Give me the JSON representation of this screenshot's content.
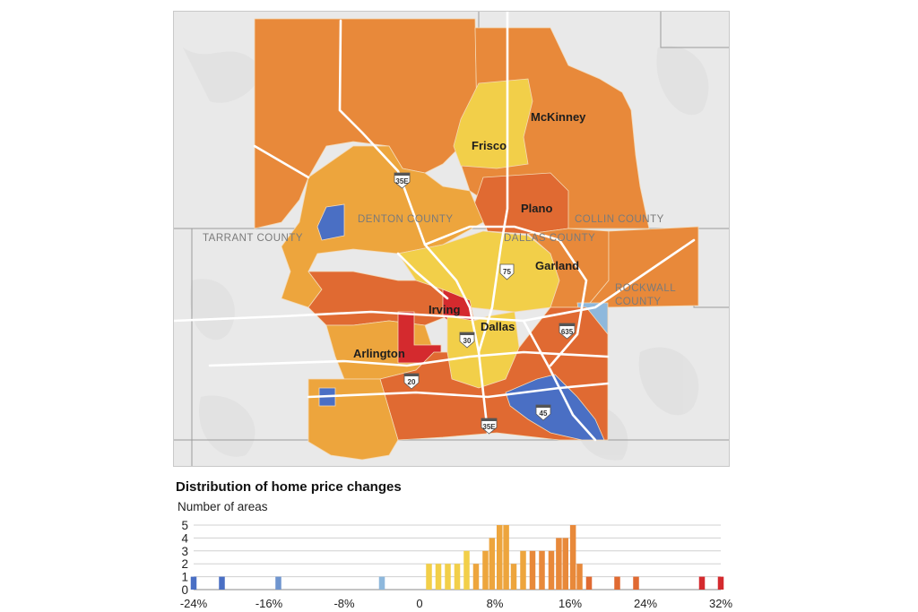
{
  "map": {
    "cities": [
      {
        "name": "McKinney"
      },
      {
        "name": "Frisco"
      },
      {
        "name": "Plano"
      },
      {
        "name": "Garland"
      },
      {
        "name": "Irving"
      },
      {
        "name": "Dallas"
      },
      {
        "name": "Arlington"
      }
    ],
    "counties": [
      {
        "name": "DENTON COUNTY"
      },
      {
        "name": "COLLIN COUNTY"
      },
      {
        "name": "TARRANT COUNTY"
      },
      {
        "name": "DALLAS COUNTY"
      },
      {
        "name": "ROCKWALL",
        "name2": "COUNTY"
      }
    ],
    "highways": [
      "35E",
      "75",
      "635",
      "30",
      "20",
      "45",
      "35E"
    ],
    "colors": {
      "strong_decline": "#4a6fc4",
      "mild_decline": "#8eb8dc",
      "low_gain": "#f2cf49",
      "mid_gain": "#eda53d",
      "high_gain": "#e8893a",
      "very_high_gain": "#e06a32",
      "extreme_gain": "#d42a2e"
    }
  },
  "chart_data": {
    "type": "bar",
    "title": "Distribution of home price changes",
    "ylabel": "Number of areas",
    "xlim": [
      -24,
      32
    ],
    "ylim": [
      0,
      5
    ],
    "xticks": [
      "-24%",
      "-16%",
      "-8%",
      "0",
      "8%",
      "16%",
      "24%",
      "32%"
    ],
    "yticks": [
      "0",
      "1",
      "2",
      "3",
      "4",
      "5"
    ],
    "x": [
      -24,
      -21,
      -15,
      -4,
      1,
      2,
      3,
      4,
      5,
      6,
      7,
      7.7,
      8.5,
      9.2,
      10,
      11,
      12,
      13,
      14,
      14.8,
      15.5,
      16.3,
      17,
      18,
      21,
      23,
      30,
      32
    ],
    "values": [
      1,
      1,
      1,
      1,
      2,
      2,
      2,
      2,
      3,
      2,
      3,
      4,
      5,
      5,
      2,
      3,
      3,
      3,
      3,
      4,
      4,
      5,
      2,
      1,
      1,
      1,
      1,
      1
    ]
  }
}
